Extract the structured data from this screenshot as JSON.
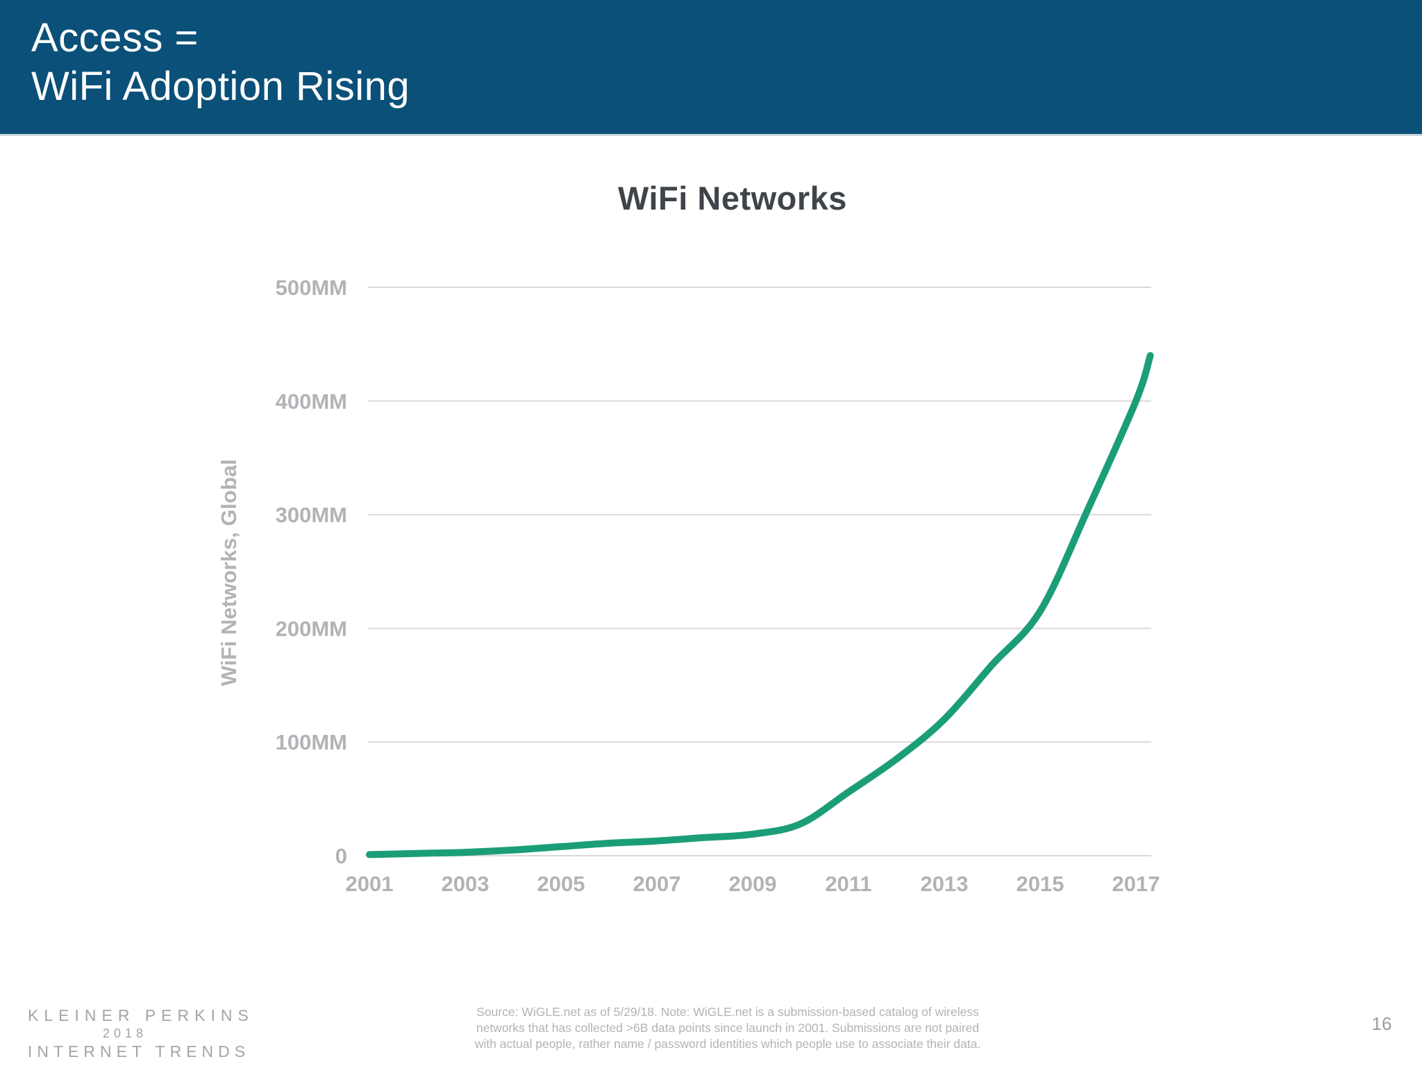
{
  "header": {
    "title_line1": "Access =",
    "title_line2": "WiFi Adoption Rising"
  },
  "chart_data": {
    "type": "line",
    "title": "WiFi Networks",
    "xlabel": "",
    "ylabel": "WiFi Networks, Global",
    "xlim": [
      2000.97,
      2017.35
    ],
    "ylim": [
      0,
      500
    ],
    "x_ticks": [
      "2001",
      "2003",
      "2005",
      "2007",
      "2009",
      "2011",
      "2013",
      "2015",
      "2017"
    ],
    "y_ticks": [
      {
        "value": 0,
        "label": "0"
      },
      {
        "value": 100,
        "label": "100MM"
      },
      {
        "value": 200,
        "label": "200MM"
      },
      {
        "value": 300,
        "label": "300MM"
      },
      {
        "value": 400,
        "label": "400MM"
      },
      {
        "value": 500,
        "label": "500MM"
      }
    ],
    "grid": "horizontal-gridlines",
    "legend_position": "none",
    "series": [
      {
        "name": "WiFi Networks, Global",
        "color": "#1b9e77",
        "points": [
          {
            "year": 2001,
            "value_mm": 1
          },
          {
            "year": 2002,
            "value_mm": 2
          },
          {
            "year": 2003,
            "value_mm": 3
          },
          {
            "year": 2004,
            "value_mm": 5
          },
          {
            "year": 2005,
            "value_mm": 8
          },
          {
            "year": 2006,
            "value_mm": 11
          },
          {
            "year": 2007,
            "value_mm": 13
          },
          {
            "year": 2008,
            "value_mm": 16
          },
          {
            "year": 2009,
            "value_mm": 19
          },
          {
            "year": 2010,
            "value_mm": 28
          },
          {
            "year": 2011,
            "value_mm": 56
          },
          {
            "year": 2012,
            "value_mm": 85
          },
          {
            "year": 2013,
            "value_mm": 120
          },
          {
            "year": 2014,
            "value_mm": 168
          },
          {
            "year": 2015,
            "value_mm": 215
          },
          {
            "year": 2016,
            "value_mm": 305
          },
          {
            "year": 2017,
            "value_mm": 400
          },
          {
            "year": 2017.3,
            "value_mm": 440
          }
        ]
      }
    ]
  },
  "footer": {
    "logo_line1": "KLEINER PERKINS",
    "logo_line2": "2018",
    "logo_line3": "INTERNET TRENDS",
    "source_line1": "Source: WiGLE.net as of 5/29/18.  Note: WiGLE.net is a submission-based catalog of wireless",
    "source_line2": "networks that has collected >6B data points since launch in 2001. Submissions are not paired",
    "source_line3": "with actual people, rather name / password identities which people use to associate their data.",
    "page_number": "16"
  },
  "colors": {
    "header_background": "#0a5078",
    "accent_green": "#1b9e77",
    "title_text": "#3f4449",
    "axis_text": "#b1b3b6",
    "gridline": "#d9d9d9",
    "footer_text": "#b3b3b3",
    "logo_text": "#a4a4a9",
    "page_number_text": "#9b9b9b"
  }
}
